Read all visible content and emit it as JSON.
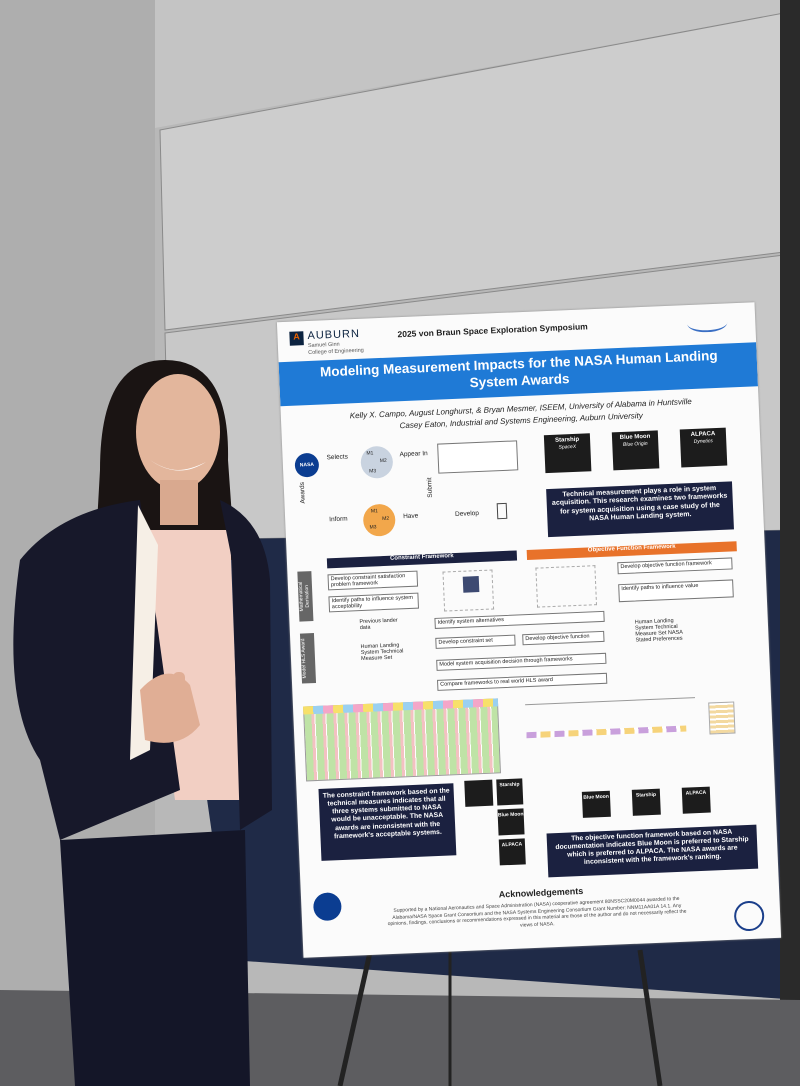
{
  "poster": {
    "header": {
      "university": "AUBURN",
      "college_1": "Samuel Ginn",
      "college_2": "College of Engineering",
      "symposium": "2025 von Braun Space Exploration Symposium"
    },
    "title": "Modeling Measurement Impacts for the NASA Human Landing System Awards",
    "authors": [
      "Kelly X. Campo, August Longhurst, & Bryan Mesmer, ISEEM, University of Alabama in Huntsville",
      "Casey Eaton, Industrial and Systems Engineering, Auburn University"
    ],
    "flow": {
      "nasa": "NASA",
      "selects": "Selects",
      "appear_in": "Appear In",
      "submit": "Submit",
      "develop": "Develop",
      "have": "Have",
      "inform": "Inform",
      "awards": "Awards",
      "m1": "M1",
      "m2": "M2",
      "m3": "M3"
    },
    "systems": [
      {
        "name": "Starship",
        "maker": "SpaceX"
      },
      {
        "name": "Blue Moon",
        "maker": "Blue Origin"
      },
      {
        "name": "ALPACA",
        "maker": "Dynetics"
      }
    ],
    "summary": "Technical measurement plays a role in system acquisition. This research examines two frameworks for system acquisition using a case study of the NASA Human Landing system.",
    "frameworks": [
      "Constraint Framework",
      "Objective Function Framework"
    ],
    "side_labels": [
      "Mathematical Derivation",
      "Model HLS Award"
    ],
    "steps": {
      "constraint_1": "Develop constraint satisfaction problem framework",
      "constraint_2": "Identify paths to influence system acceptability",
      "objective_1": "Develop objective function framework",
      "objective_2": "Identify paths to influence value",
      "input_left_1": "Previous lander data",
      "input_left_2": "Human Landing System Technical Measure Set",
      "alternatives": "Identify system alternatives",
      "constraint_set": "Develop constraint set",
      "objective_function": "Develop objective function",
      "input_right": "Human Landing System Technical Measure Set NASA Stated Preferences",
      "model": "Model system acquisition decision through frameworks",
      "compare": "Compare frameworks to real world HLS award"
    },
    "conclusions": [
      "The constraint framework based on the technical measures indicates that all three systems submitted to NASA would be unacceptable. The NASA awards are inconsistent with the framework's acceptable systems.",
      "The objective function framework based on NASA documentation indicates Blue Moon is preferred to Starship which is preferred to ALPACA. The NASA awards are inconsistent with the framework's ranking."
    ],
    "acknowledgements_title": "Acknowledgements",
    "acknowledgements": "Supported by a National Aeronautics and Space Administration (NASA) cooperative agreement 80NSSC20M0044 awarded to the Alabama/NASA Space Grant Consortium and the NASA Systems Engineering Consortium Grant Number: NNM11AA01A 14.1. Any opinions, findings, conclusions or recommendations expressed in this material are those of the author and do not necessarily reflect the views of NASA."
  }
}
